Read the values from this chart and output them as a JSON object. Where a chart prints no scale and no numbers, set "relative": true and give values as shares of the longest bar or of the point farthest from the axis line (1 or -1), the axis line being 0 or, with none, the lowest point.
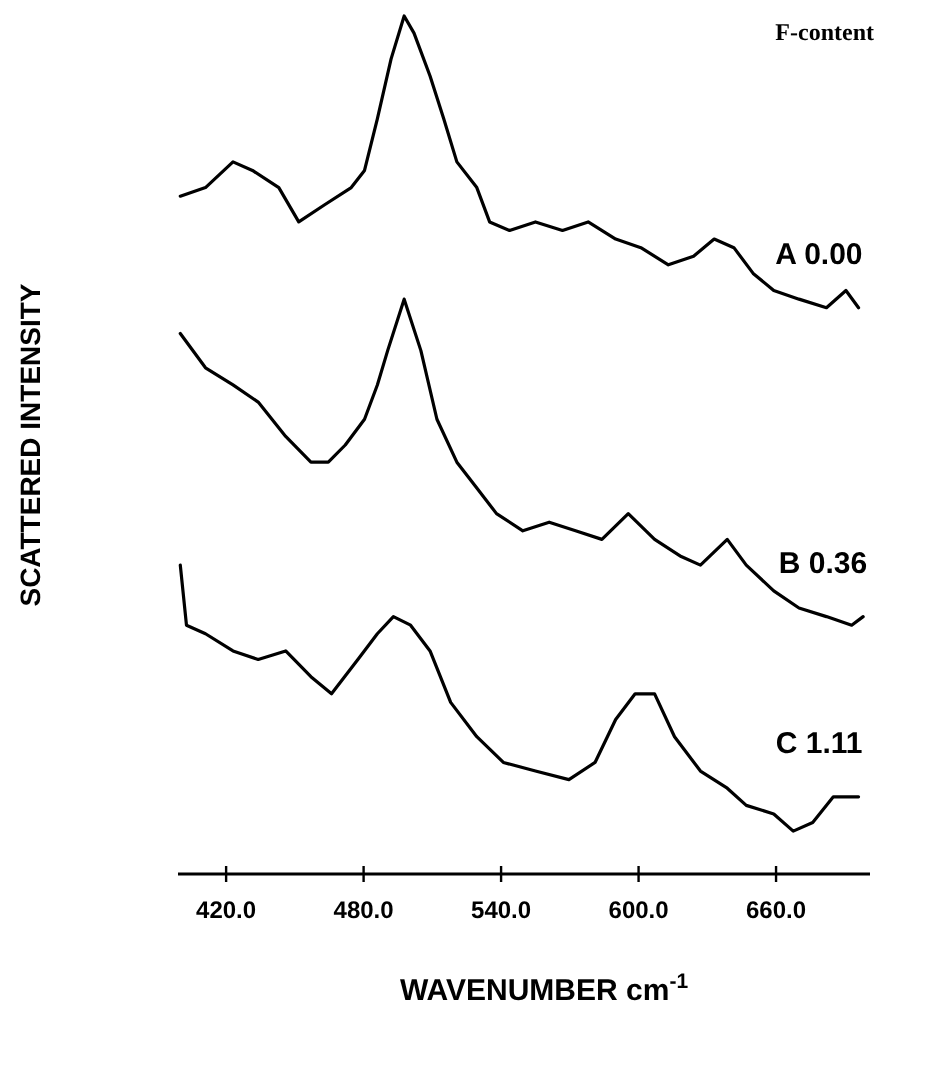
{
  "chart_data": {
    "type": "line",
    "relative": true,
    "xlabel": "WAVENUMBER cm$^{-1}$",
    "ylabel": "SCATTERED INTENSITY",
    "legend_title": "F-content",
    "xlim": [
      399,
      701
    ],
    "xticks": [
      {
        "value": 420,
        "label": "420.0"
      },
      {
        "value": 480,
        "label": "480.0"
      },
      {
        "value": 540,
        "label": "540.0"
      },
      {
        "value": 600,
        "label": "600.0"
      },
      {
        "value": 660,
        "label": "660.0"
      }
    ],
    "series": [
      {
        "name": "A 0.00",
        "color": "#000000",
        "x": [
          400,
          411,
          423,
          431.5,
          443,
          451.7,
          463,
          474.6,
          480.4,
          486,
          492,
          497.7,
          502,
          509,
          515,
          520.7,
          529.4,
          535,
          543.7,
          555,
          566.8,
          578,
          590,
          601,
          613,
          624,
          633,
          641.6,
          650,
          659,
          670,
          682,
          690.5,
          696
        ],
        "values": [
          0.79,
          0.8,
          0.83,
          0.82,
          0.8,
          0.76,
          0.78,
          0.8,
          0.82,
          0.88,
          0.95,
          1.0,
          0.98,
          0.93,
          0.88,
          0.83,
          0.8,
          0.76,
          0.75,
          0.76,
          0.75,
          0.76,
          0.74,
          0.73,
          0.71,
          0.72,
          0.74,
          0.73,
          0.7,
          0.68,
          0.67,
          0.66,
          0.68,
          0.66
        ]
      },
      {
        "name": "B 0.36",
        "color": "#000000",
        "x": [
          400,
          411,
          423,
          434,
          446,
          457,
          464.6,
          472,
          480.4,
          486,
          490.5,
          497.7,
          505,
          512,
          520.7,
          529.4,
          538,
          549.5,
          561,
          572.5,
          584,
          595.5,
          607,
          618.6,
          627,
          638.7,
          647,
          659,
          670,
          682,
          693,
          698
        ],
        "values": [
          0.63,
          0.59,
          0.57,
          0.55,
          0.51,
          0.48,
          0.48,
          0.5,
          0.53,
          0.57,
          0.61,
          0.67,
          0.61,
          0.53,
          0.48,
          0.45,
          0.42,
          0.4,
          0.41,
          0.4,
          0.39,
          0.42,
          0.39,
          0.37,
          0.36,
          0.39,
          0.36,
          0.33,
          0.31,
          0.3,
          0.29,
          0.3
        ]
      },
      {
        "name": "C 1.11",
        "color": "#000000",
        "x": [
          400,
          402.7,
          411,
          423,
          434,
          446,
          457,
          466,
          477.5,
          486,
          493,
          500.5,
          509,
          518,
          529.4,
          541,
          555,
          569.6,
          581,
          590,
          598.5,
          607,
          615.7,
          627,
          638.7,
          647,
          659,
          667.5,
          676,
          685,
          696
        ],
        "values": [
          0.36,
          0.29,
          0.28,
          0.26,
          0.25,
          0.26,
          0.23,
          0.21,
          0.25,
          0.28,
          0.3,
          0.29,
          0.26,
          0.2,
          0.16,
          0.13,
          0.12,
          0.11,
          0.13,
          0.18,
          0.21,
          0.21,
          0.16,
          0.12,
          0.1,
          0.08,
          0.07,
          0.05,
          0.06,
          0.09,
          0.09
        ]
      }
    ]
  }
}
